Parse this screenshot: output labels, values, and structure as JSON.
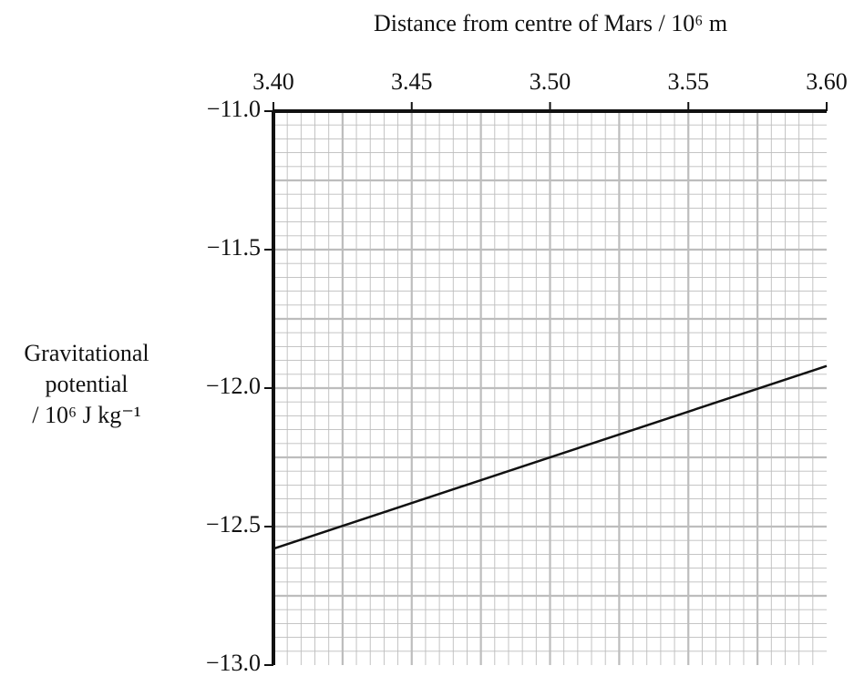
{
  "chart_data": {
    "type": "line",
    "xlabel": "Distance from centre of Mars / 10⁶ m",
    "ylabel": [
      "Gravitational",
      "potential",
      "/ 10⁶ J kg⁻¹"
    ],
    "x": [
      3.4,
      3.6
    ],
    "series": [
      {
        "values": [
          -12.58,
          -11.92
        ],
        "color": "#111111"
      }
    ],
    "xlim": [
      3.4,
      3.6
    ],
    "ylim": [
      -13.0,
      -11.0
    ],
    "xticks": [
      {
        "value": 3.4,
        "label": "3.40"
      },
      {
        "value": 3.45,
        "label": "3.45"
      },
      {
        "value": 3.5,
        "label": "3.50"
      },
      {
        "value": 3.55,
        "label": "3.55"
      },
      {
        "value": 3.6,
        "label": "3.60"
      }
    ],
    "yticks": [
      {
        "value": -11.0,
        "label": "−11.0"
      },
      {
        "value": -11.5,
        "label": "−11.5"
      },
      {
        "value": -12.0,
        "label": "−12.0"
      },
      {
        "value": -12.5,
        "label": "−12.5"
      },
      {
        "value": -13.0,
        "label": "−13.0"
      }
    ],
    "grid": true
  }
}
